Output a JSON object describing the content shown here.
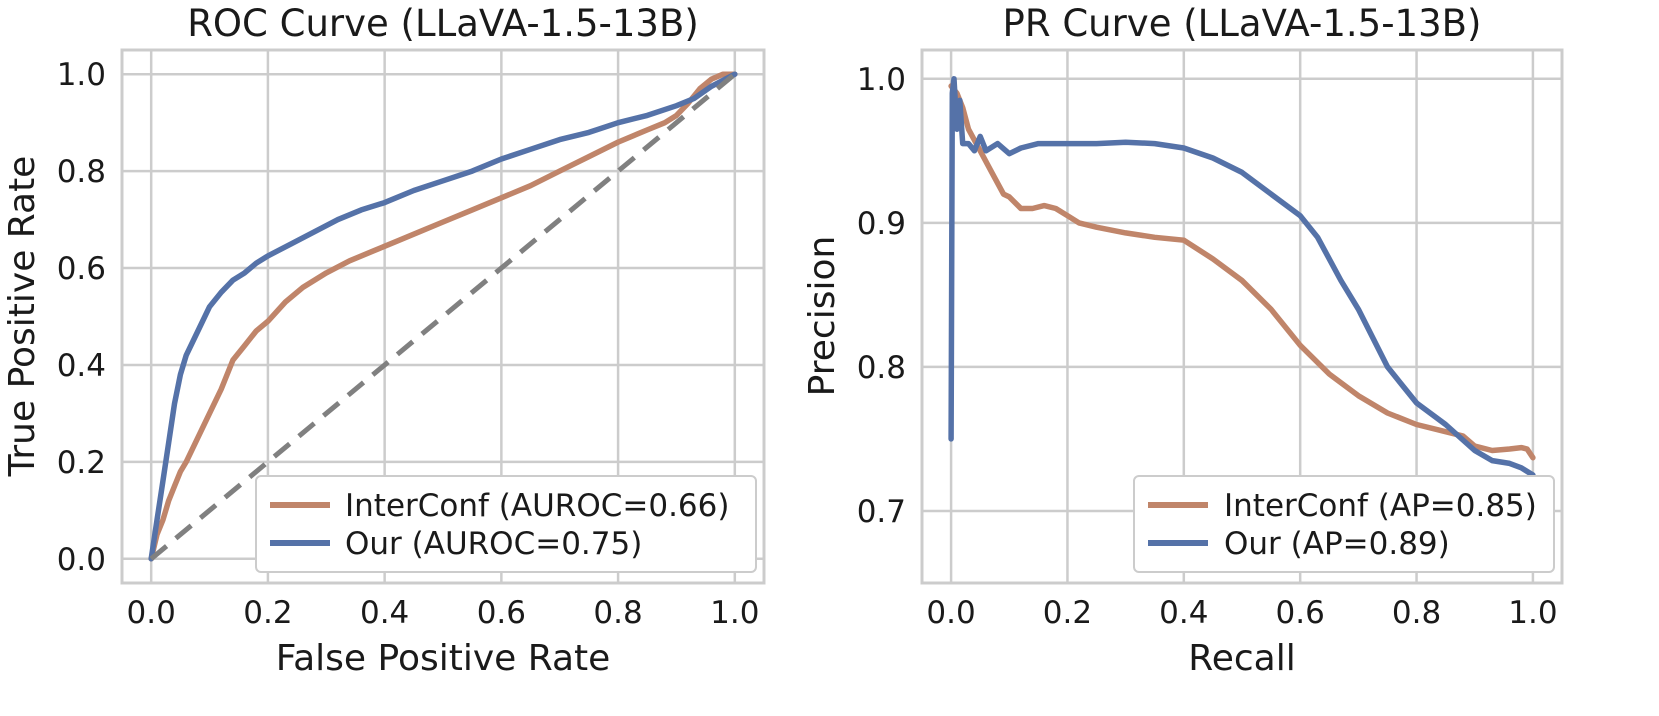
{
  "chart_data": [
    {
      "type": "line",
      "title": "ROC Curve (LLaVA-1.5-13B)",
      "xlabel": "False Positive Rate",
      "ylabel": "True Positive Rate",
      "xlim": [
        -0.05,
        1.05
      ],
      "ylim": [
        -0.05,
        1.05
      ],
      "xticks": [
        "0.0",
        "0.2",
        "0.4",
        "0.6",
        "0.8",
        "1.0"
      ],
      "yticks": [
        "0.0",
        "0.2",
        "0.4",
        "0.6",
        "0.8",
        "1.0"
      ],
      "grid": true,
      "legend_position": "bottom-right",
      "series": [
        {
          "name": "InterConf (AUROC=0.66)",
          "color": "#c0856a",
          "x": [
            0,
            0.01,
            0.02,
            0.03,
            0.04,
            0.05,
            0.06,
            0.08,
            0.1,
            0.12,
            0.14,
            0.16,
            0.18,
            0.2,
            0.23,
            0.26,
            0.3,
            0.34,
            0.38,
            0.42,
            0.46,
            0.5,
            0.55,
            0.6,
            0.65,
            0.7,
            0.75,
            0.8,
            0.85,
            0.88,
            0.9,
            0.92,
            0.94,
            0.96,
            0.98,
            1.0
          ],
          "y": [
            0,
            0.05,
            0.08,
            0.12,
            0.15,
            0.18,
            0.2,
            0.25,
            0.3,
            0.35,
            0.41,
            0.44,
            0.47,
            0.49,
            0.53,
            0.56,
            0.59,
            0.615,
            0.635,
            0.655,
            0.675,
            0.695,
            0.72,
            0.745,
            0.77,
            0.8,
            0.83,
            0.86,
            0.885,
            0.9,
            0.915,
            0.94,
            0.97,
            0.99,
            1.0,
            1.0
          ]
        },
        {
          "name": "Our (AUROC=0.75)",
          "color": "#5572a8",
          "x": [
            0,
            0.01,
            0.02,
            0.03,
            0.04,
            0.05,
            0.06,
            0.08,
            0.1,
            0.12,
            0.14,
            0.16,
            0.18,
            0.2,
            0.24,
            0.28,
            0.32,
            0.36,
            0.4,
            0.45,
            0.5,
            0.55,
            0.6,
            0.65,
            0.7,
            0.75,
            0.8,
            0.85,
            0.9,
            0.93,
            0.96,
            1.0
          ],
          "y": [
            0,
            0.08,
            0.16,
            0.24,
            0.32,
            0.38,
            0.42,
            0.47,
            0.52,
            0.55,
            0.575,
            0.59,
            0.61,
            0.625,
            0.65,
            0.675,
            0.7,
            0.72,
            0.735,
            0.76,
            0.78,
            0.8,
            0.825,
            0.845,
            0.865,
            0.88,
            0.9,
            0.915,
            0.935,
            0.95,
            0.975,
            1.0
          ]
        },
        {
          "name": "",
          "color": "#808080",
          "dashed": true,
          "x": [
            0,
            1
          ],
          "y": [
            0,
            1
          ]
        }
      ]
    },
    {
      "type": "line",
      "title": "PR Curve (LLaVA-1.5-13B)",
      "xlabel": "Recall",
      "ylabel": "Precision",
      "xlim": [
        -0.05,
        1.05
      ],
      "ylim": [
        0.65,
        1.02
      ],
      "xticks": [
        "0.0",
        "0.2",
        "0.4",
        "0.6",
        "0.8",
        "1.0"
      ],
      "yticks": [
        "0.7",
        "0.8",
        "0.9",
        "1.0"
      ],
      "grid": true,
      "legend_position": "bottom-right",
      "series": [
        {
          "name": "InterConf (AP=0.85)",
          "color": "#c0856a",
          "x": [
            0,
            0.01,
            0.02,
            0.03,
            0.05,
            0.07,
            0.09,
            0.1,
            0.12,
            0.14,
            0.16,
            0.18,
            0.2,
            0.22,
            0.25,
            0.3,
            0.35,
            0.4,
            0.45,
            0.5,
            0.55,
            0.6,
            0.65,
            0.7,
            0.75,
            0.8,
            0.85,
            0.88,
            0.9,
            0.93,
            0.96,
            0.98,
            0.99,
            1.0
          ],
          "y": [
            0.995,
            0.99,
            0.98,
            0.965,
            0.95,
            0.935,
            0.92,
            0.918,
            0.91,
            0.91,
            0.912,
            0.91,
            0.905,
            0.9,
            0.897,
            0.893,
            0.89,
            0.888,
            0.875,
            0.86,
            0.84,
            0.815,
            0.795,
            0.78,
            0.768,
            0.76,
            0.755,
            0.752,
            0.745,
            0.742,
            0.743,
            0.744,
            0.743,
            0.737
          ]
        },
        {
          "name": "Our (AP=0.89)",
          "color": "#5572a8",
          "x": [
            0,
            0.002,
            0.005,
            0.01,
            0.015,
            0.02,
            0.03,
            0.04,
            0.05,
            0.06,
            0.08,
            0.1,
            0.12,
            0.15,
            0.2,
            0.25,
            0.3,
            0.35,
            0.4,
            0.45,
            0.5,
            0.55,
            0.6,
            0.63,
            0.67,
            0.7,
            0.75,
            0.8,
            0.85,
            0.9,
            0.93,
            0.96,
            0.98,
            1.0
          ],
          "y": [
            0.75,
            0.99,
            1.0,
            0.965,
            0.985,
            0.955,
            0.955,
            0.95,
            0.96,
            0.95,
            0.955,
            0.948,
            0.952,
            0.955,
            0.955,
            0.955,
            0.956,
            0.955,
            0.952,
            0.945,
            0.935,
            0.92,
            0.905,
            0.89,
            0.86,
            0.84,
            0.8,
            0.775,
            0.76,
            0.742,
            0.735,
            0.733,
            0.73,
            0.725
          ]
        }
      ]
    }
  ]
}
